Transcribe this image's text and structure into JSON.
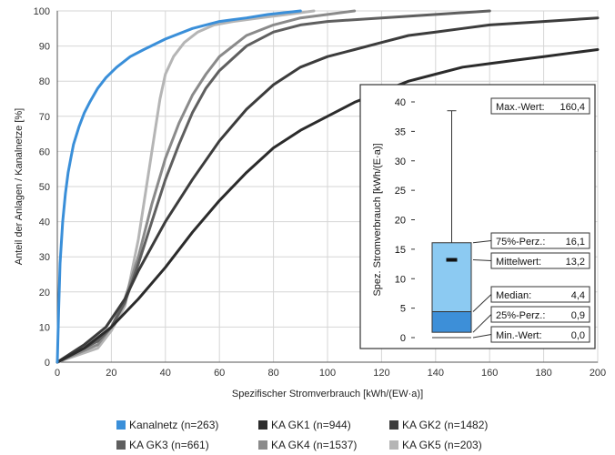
{
  "chart_data": {
    "type": "line",
    "xlabel": "Spezifischer Stromverbrauch [kWh/(EW·a)]",
    "ylabel": "Anteil der Anlagen / Kanalnetze [%]",
    "xlim": [
      0,
      200
    ],
    "ylim": [
      0,
      100
    ],
    "x_ticks": [
      "0",
      "20",
      "40",
      "60",
      "80",
      "100",
      "120",
      "140",
      "160",
      "180",
      "200"
    ],
    "y_ticks": [
      "0",
      "10",
      "20",
      "30",
      "40",
      "50",
      "60",
      "70",
      "80",
      "90",
      "100"
    ],
    "grid": true,
    "legend_position": "bottom",
    "series": [
      {
        "name": "Kanalnetz (n=263)",
        "color": "#3a8fd9",
        "points": [
          [
            0,
            0
          ],
          [
            0.5,
            15
          ],
          [
            1,
            28
          ],
          [
            2,
            40
          ],
          [
            3,
            48
          ],
          [
            4,
            54
          ],
          [
            5,
            58
          ],
          [
            6,
            62
          ],
          [
            8,
            67
          ],
          [
            10,
            71
          ],
          [
            12,
            74
          ],
          [
            15,
            78
          ],
          [
            18,
            81
          ],
          [
            22,
            84
          ],
          [
            27,
            87
          ],
          [
            32,
            89
          ],
          [
            40,
            92
          ],
          [
            50,
            95
          ],
          [
            60,
            97
          ],
          [
            70,
            98
          ],
          [
            78,
            99
          ],
          [
            90,
            100
          ]
        ]
      },
      {
        "name": "KA GK1 (n=944)",
        "color": "#2b2b2b",
        "points": [
          [
            0,
            0
          ],
          [
            10,
            4
          ],
          [
            20,
            10
          ],
          [
            30,
            18
          ],
          [
            40,
            27
          ],
          [
            50,
            37
          ],
          [
            60,
            46
          ],
          [
            70,
            54
          ],
          [
            80,
            61
          ],
          [
            90,
            66
          ],
          [
            100,
            70
          ],
          [
            110,
            74
          ],
          [
            120,
            77
          ],
          [
            130,
            80
          ],
          [
            140,
            82
          ],
          [
            150,
            84
          ],
          [
            160,
            85
          ],
          [
            170,
            86
          ],
          [
            180,
            87
          ],
          [
            190,
            88
          ],
          [
            200,
            89
          ]
        ]
      },
      {
        "name": "KA GK2 (n=1482)",
        "color": "#3c3c3c",
        "points": [
          [
            0,
            0
          ],
          [
            10,
            5
          ],
          [
            18,
            10
          ],
          [
            25,
            18
          ],
          [
            30,
            26
          ],
          [
            40,
            40
          ],
          [
            50,
            52
          ],
          [
            60,
            63
          ],
          [
            70,
            72
          ],
          [
            80,
            79
          ],
          [
            90,
            84
          ],
          [
            100,
            87
          ],
          [
            110,
            89
          ],
          [
            120,
            91
          ],
          [
            130,
            93
          ],
          [
            140,
            94
          ],
          [
            150,
            95
          ],
          [
            160,
            96
          ],
          [
            180,
            97
          ],
          [
            200,
            98
          ]
        ]
      },
      {
        "name": "KA GK3 (n=661)",
        "color": "#5f5f5f",
        "points": [
          [
            0,
            0
          ],
          [
            15,
            6
          ],
          [
            20,
            10
          ],
          [
            25,
            17
          ],
          [
            30,
            28
          ],
          [
            35,
            40
          ],
          [
            40,
            52
          ],
          [
            45,
            62
          ],
          [
            50,
            71
          ],
          [
            55,
            78
          ],
          [
            60,
            83
          ],
          [
            70,
            90
          ],
          [
            80,
            94
          ],
          [
            90,
            96
          ],
          [
            100,
            97
          ],
          [
            120,
            98
          ],
          [
            140,
            99
          ],
          [
            160,
            100
          ]
        ]
      },
      {
        "name": "KA GK4 (n=1537)",
        "color": "#8a8a8a",
        "points": [
          [
            0,
            0
          ],
          [
            15,
            5
          ],
          [
            20,
            10
          ],
          [
            25,
            18
          ],
          [
            30,
            30
          ],
          [
            35,
            45
          ],
          [
            40,
            58
          ],
          [
            45,
            68
          ],
          [
            50,
            76
          ],
          [
            55,
            82
          ],
          [
            60,
            87
          ],
          [
            70,
            93
          ],
          [
            80,
            96
          ],
          [
            90,
            98
          ],
          [
            100,
            99
          ],
          [
            110,
            100
          ]
        ]
      },
      {
        "name": "KA GK5 (n=203)",
        "color": "#b5b5b5",
        "points": [
          [
            0,
            0
          ],
          [
            15,
            4
          ],
          [
            20,
            9
          ],
          [
            25,
            16
          ],
          [
            30,
            35
          ],
          [
            33,
            50
          ],
          [
            36,
            65
          ],
          [
            38,
            75
          ],
          [
            40,
            82
          ],
          [
            43,
            87
          ],
          [
            47,
            91
          ],
          [
            52,
            94
          ],
          [
            58,
            96
          ],
          [
            65,
            97
          ],
          [
            75,
            98
          ],
          [
            85,
            99
          ],
          [
            95,
            100
          ]
        ]
      }
    ],
    "inset": {
      "type": "boxplot",
      "ylabel": "Spez. Stromverbrauch [kWh/(E·a)]",
      "ylim": [
        0,
        40
      ],
      "y_ticks": [
        "0",
        "5",
        "10",
        "15",
        "20",
        "25",
        "30",
        "35",
        "40"
      ],
      "max": 160.4,
      "whisker_top": 38.5,
      "p75": 16.1,
      "mean": 13.2,
      "median": 4.4,
      "p25": 0.9,
      "min": 0.0,
      "labels": {
        "max": {
          "label": "Max.-Wert:",
          "value": "160,4"
        },
        "p75": {
          "label": "75%-Perz.:",
          "value": "16,1"
        },
        "mean": {
          "label": "Mittelwert:",
          "value": "13,2"
        },
        "median": {
          "label": "Median:",
          "value": "4,4"
        },
        "p25": {
          "label": "25%-Perz.:",
          "value": "0,9"
        },
        "min": {
          "label": "Min.-Wert:",
          "value": "0,0"
        }
      }
    }
  }
}
